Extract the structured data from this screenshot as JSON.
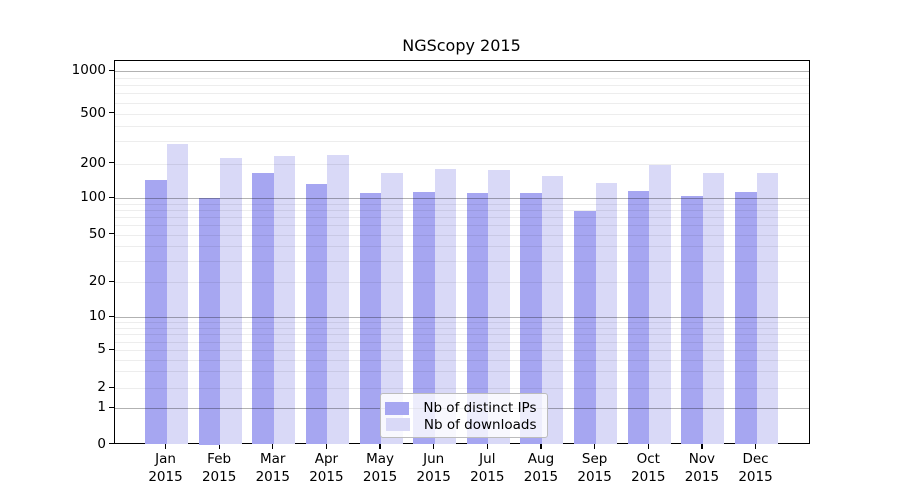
{
  "figure": {
    "title": "NGScopy 2015",
    "background": "#ffffff"
  },
  "colors": {
    "bar_distinct_ips": "#a6a6f1",
    "bar_downloads": "#d9d9f7",
    "grid_major": "#b0b0b0",
    "grid_minor": "#e8e8e8",
    "axis": "#000000",
    "background": "#ffffff"
  },
  "chart_data": {
    "type": "bar",
    "title": "NGScopy 2015",
    "categories": [
      "Jan",
      "Feb",
      "Mar",
      "Apr",
      "May",
      "Jun",
      "Jul",
      "Aug",
      "Sep",
      "Oct",
      "Nov",
      "Dec"
    ],
    "year_label": "2015",
    "series": [
      {
        "name": "Nb of distinct IPs",
        "color": "#a6a6f1",
        "values": [
          143,
          100,
          164,
          132,
          110,
          113,
          111,
          111,
          78,
          115,
          105,
          113
        ]
      },
      {
        "name": "Nb of downloads",
        "color": "#d9d9f7",
        "values": [
          285,
          220,
          230,
          232,
          166,
          180,
          174,
          155,
          136,
          196,
          164,
          165
        ]
      }
    ],
    "xlabel": "",
    "ylabel": "",
    "yscale": "symlog",
    "y_ticks": [
      0,
      1,
      2,
      5,
      10,
      20,
      50,
      100,
      200,
      500,
      1000
    ],
    "ylim": [
      0,
      1200
    ],
    "grid": "horizontal major+minor, drawn over bars",
    "legend_position": "lower center"
  }
}
